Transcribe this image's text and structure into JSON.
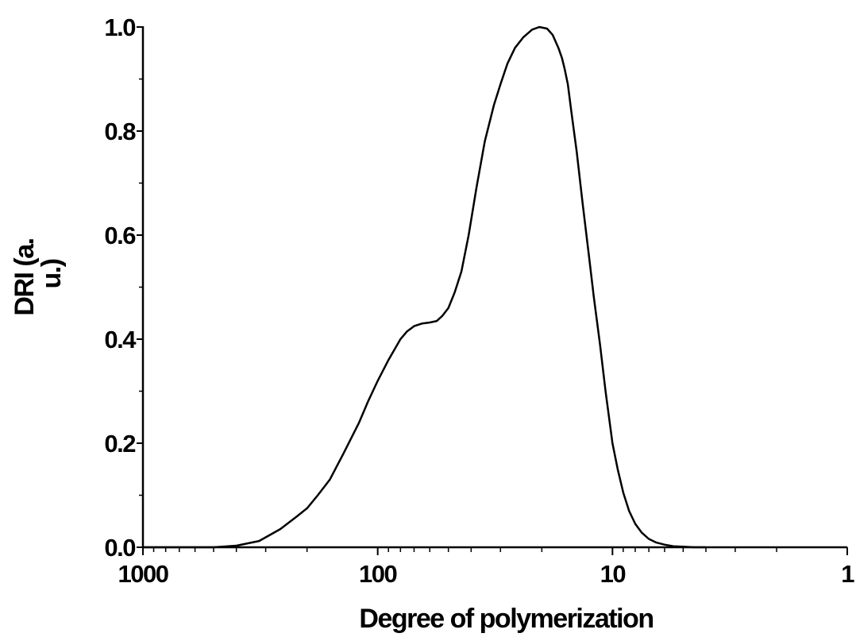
{
  "chart_data": {
    "type": "line",
    "xlabel": "Degree of polymerization",
    "ylabel_lines": [
      "DRI (a.",
      "u.)"
    ],
    "x_scale": "log",
    "x_reversed": true,
    "xlim": [
      1000,
      1
    ],
    "ylim": [
      0,
      1.0
    ],
    "x_ticks": [
      {
        "value": 1000,
        "label": "1000"
      },
      {
        "value": 100,
        "label": "100"
      },
      {
        "value": 10,
        "label": "10"
      },
      {
        "value": 1,
        "label": "1"
      }
    ],
    "y_ticks": [
      {
        "value": 0.0,
        "label": "0.0"
      },
      {
        "value": 0.2,
        "label": "0.2"
      },
      {
        "value": 0.4,
        "label": "0.4"
      },
      {
        "value": 0.6,
        "label": "0.6"
      },
      {
        "value": 0.8,
        "label": "0.8"
      },
      {
        "value": 1.0,
        "label": "1.0"
      }
    ],
    "grid": false,
    "legend": "none",
    "line_color": "#000000",
    "series": [
      {
        "x": [
          1000,
          700,
          500,
          400,
          320,
          260,
          220,
          200,
          180,
          160,
          140,
          120,
          110,
          100,
          90,
          80,
          75,
          70,
          65,
          60,
          56,
          53,
          50,
          47,
          44,
          41,
          38,
          35,
          32,
          30,
          28,
          26,
          24,
          22,
          20.5,
          19,
          18,
          17,
          16.4,
          16,
          15.5,
          15,
          14.2,
          13.4,
          12.6,
          12,
          11.3,
          10.7,
          10,
          9.5,
          9,
          8.5,
          8,
          7.5,
          7,
          6.5,
          6,
          5.5,
          5,
          4.5,
          4
        ],
        "y": [
          0.0,
          0.0,
          0.0,
          0.003,
          0.012,
          0.035,
          0.06,
          0.075,
          0.1,
          0.13,
          0.18,
          0.24,
          0.28,
          0.32,
          0.36,
          0.4,
          0.415,
          0.425,
          0.43,
          0.432,
          0.435,
          0.445,
          0.46,
          0.49,
          0.53,
          0.6,
          0.69,
          0.78,
          0.85,
          0.89,
          0.93,
          0.96,
          0.98,
          0.995,
          1.0,
          0.997,
          0.985,
          0.96,
          0.94,
          0.92,
          0.89,
          0.84,
          0.76,
          0.66,
          0.56,
          0.48,
          0.39,
          0.3,
          0.2,
          0.15,
          0.105,
          0.07,
          0.045,
          0.028,
          0.016,
          0.009,
          0.005,
          0.002,
          0.001,
          0.0,
          0.0
        ]
      }
    ]
  }
}
